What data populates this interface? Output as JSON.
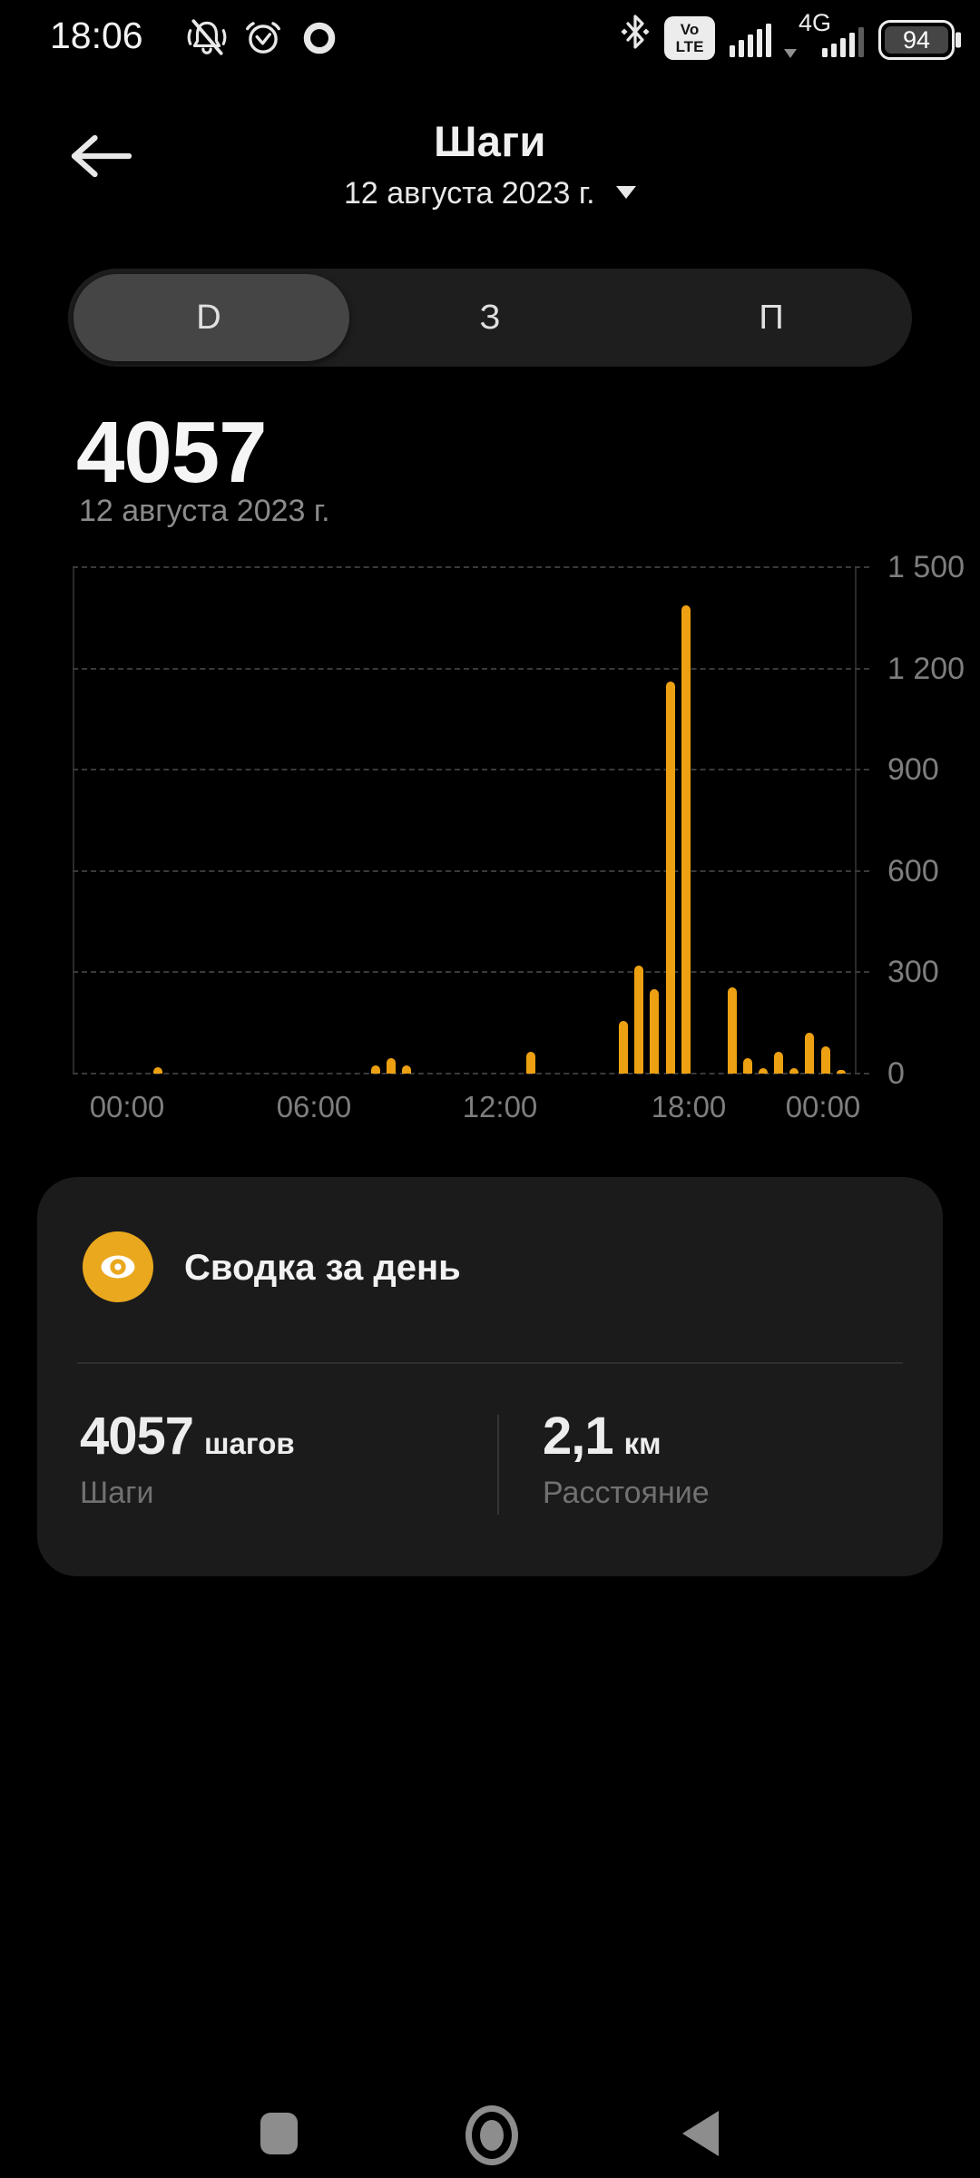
{
  "status_bar": {
    "time": "18:06",
    "battery_percent": "94",
    "network_type": "4G",
    "volte_line1": "Vo",
    "volte_line2": "LTE"
  },
  "header": {
    "title": "Шаги",
    "date_selector": "12 августа 2023 г."
  },
  "tabs": {
    "day": "D",
    "week": "З",
    "month": "П",
    "selected": "day"
  },
  "daily_total": {
    "steps": "4057",
    "date": "12 августа 2023 г."
  },
  "chart_data": {
    "type": "bar",
    "unit": "steps per half hour",
    "bar_color": "#EDA112",
    "ylim": [
      0,
      1500
    ],
    "xlim_hours": [
      0,
      24
    ],
    "grid": "dashed horizontal",
    "legend_position": "none",
    "y_ticks": [
      {
        "label": "1 500",
        "value": 1500
      },
      {
        "label": "1 200",
        "value": 1200
      },
      {
        "label": "900",
        "value": 900
      },
      {
        "label": "600",
        "value": 600
      },
      {
        "label": "300",
        "value": 300
      },
      {
        "label": "0",
        "value": 0
      }
    ],
    "x_ticks": [
      "00:00",
      "06:00",
      "12:00",
      "18:00",
      "00:00"
    ],
    "points": [
      {
        "time": "01:00",
        "hour": 1,
        "steps": 20
      },
      {
        "time": "08:00",
        "hour": 8,
        "steps": 25
      },
      {
        "time": "08:30",
        "hour": 8.5,
        "steps": 45
      },
      {
        "time": "09:00",
        "hour": 9,
        "steps": 25
      },
      {
        "time": "13:00",
        "hour": 13,
        "steps": 65
      },
      {
        "time": "16:00",
        "hour": 16,
        "steps": 155
      },
      {
        "time": "16:30",
        "hour": 16.5,
        "steps": 320
      },
      {
        "time": "17:00",
        "hour": 17,
        "steps": 250
      },
      {
        "time": "17:30",
        "hour": 17.5,
        "steps": 1160
      },
      {
        "time": "18:00",
        "hour": 18,
        "steps": 1387
      },
      {
        "time": "19:30",
        "hour": 19.5,
        "steps": 255
      },
      {
        "time": "20:00",
        "hour": 20,
        "steps": 45
      },
      {
        "time": "20:30",
        "hour": 20.5,
        "steps": 15
      },
      {
        "time": "21:00",
        "hour": 21,
        "steps": 65
      },
      {
        "time": "21:30",
        "hour": 21.5,
        "steps": 15
      },
      {
        "time": "22:00",
        "hour": 22,
        "steps": 120
      },
      {
        "time": "22:30",
        "hour": 22.5,
        "steps": 80
      },
      {
        "time": "23:00",
        "hour": 23,
        "steps": 10
      }
    ],
    "total": 4057
  },
  "summary_card": {
    "title": "Сводка за день",
    "steps": {
      "value": "4057",
      "unit": "шагов",
      "label": "Шаги"
    },
    "distance": {
      "value": "2,1",
      "unit": "км",
      "label": "Расстояние"
    }
  },
  "colors": {
    "accent": "#EDA112",
    "badge": "#E9A81E",
    "card_bg": "#1B1B1B",
    "background": "#000000"
  }
}
